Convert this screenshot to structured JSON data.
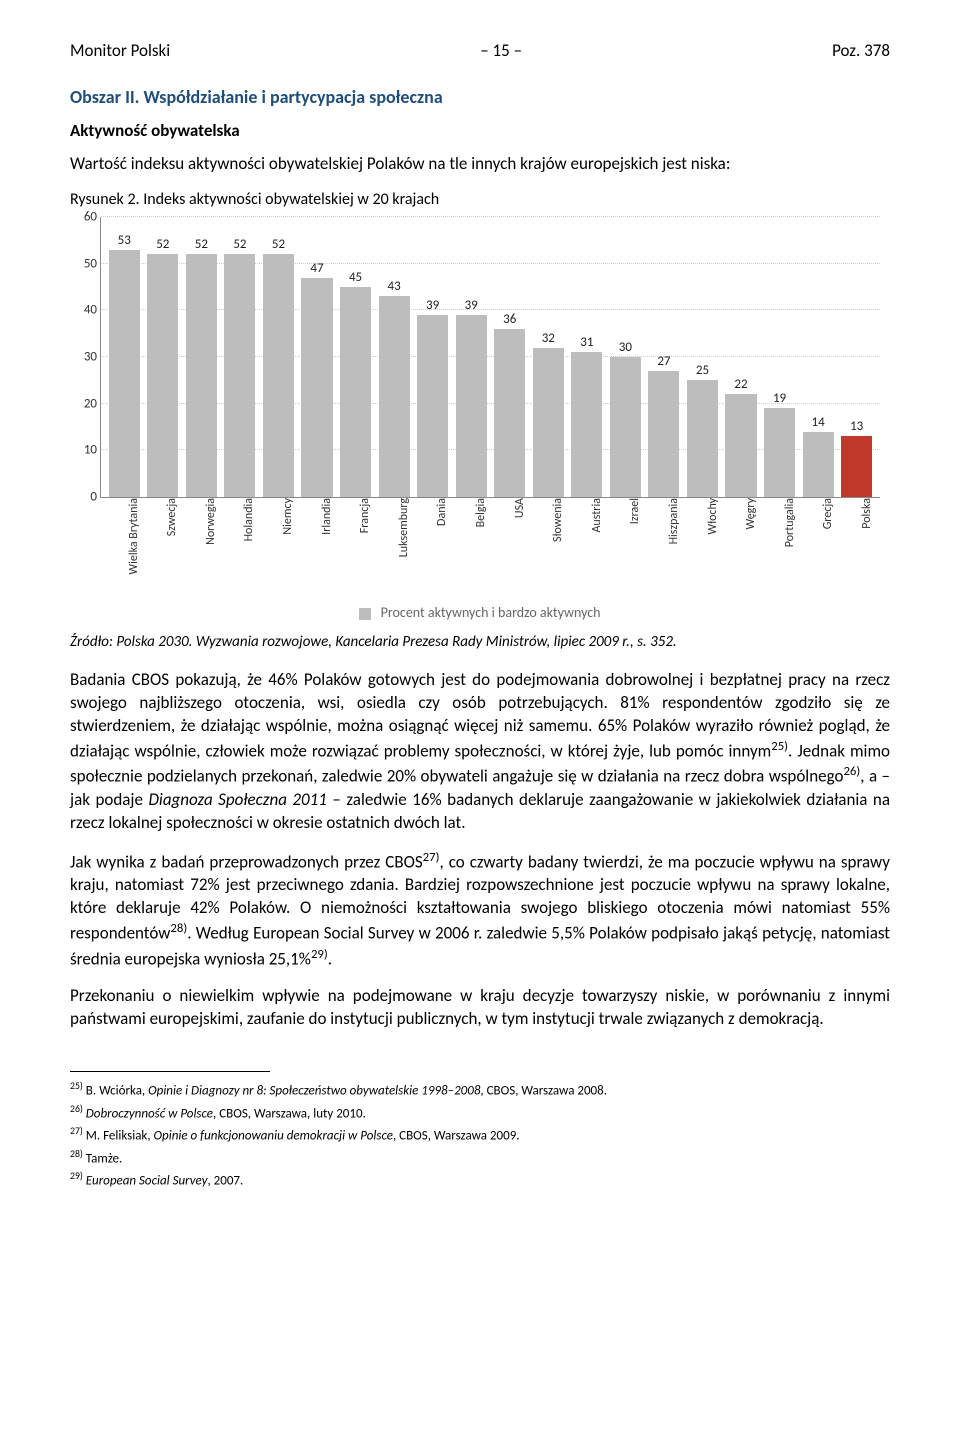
{
  "header": {
    "left": "Monitor Polski",
    "center": "– 15 –",
    "right": "Poz. 378"
  },
  "section_title": "Obszar II. Współdziałanie i partycypacja społeczna",
  "subsection": "Aktywność obywatelska",
  "intro": "Wartość indeksu aktywności obywatelskiej Polaków na tle innych krajów europejskich jest niska:",
  "figure_label": "Rysunek 2. Indeks aktywności obywatelskiej w 20 krajach",
  "chart": {
    "type": "bar",
    "ylim": [
      0,
      60
    ],
    "ytick_step": 10,
    "yticks": [
      0,
      10,
      20,
      30,
      40,
      50,
      60
    ],
    "background_color": "#ffffff",
    "grid_color": "#cccccc",
    "bar_color_default": "#bdbdbd",
    "bar_color_highlight": "#c0392b",
    "value_fontsize": 13,
    "axis_fontsize": 13,
    "bars": [
      {
        "label": "Wielka Brytania",
        "value": 53,
        "highlight": false
      },
      {
        "label": "Szwecja",
        "value": 52,
        "highlight": false
      },
      {
        "label": "Norwegia",
        "value": 52,
        "highlight": false
      },
      {
        "label": "Holandia",
        "value": 52,
        "highlight": false
      },
      {
        "label": "Niemcy",
        "value": 52,
        "highlight": false
      },
      {
        "label": "Irlandia",
        "value": 47,
        "highlight": false
      },
      {
        "label": "Francja",
        "value": 45,
        "highlight": false
      },
      {
        "label": "Luksemburg",
        "value": 43,
        "highlight": false
      },
      {
        "label": "Dania",
        "value": 39,
        "highlight": false
      },
      {
        "label": "Belgia",
        "value": 39,
        "highlight": false
      },
      {
        "label": "USA",
        "value": 36,
        "highlight": false
      },
      {
        "label": "Słowenia",
        "value": 32,
        "highlight": false
      },
      {
        "label": "Austria",
        "value": 31,
        "highlight": false
      },
      {
        "label": "Izrael",
        "value": 30,
        "highlight": false
      },
      {
        "label": "Hiszpania",
        "value": 27,
        "highlight": false
      },
      {
        "label": "Włochy",
        "value": 25,
        "highlight": false
      },
      {
        "label": "Węgry",
        "value": 22,
        "highlight": false
      },
      {
        "label": "Portugalia",
        "value": 19,
        "highlight": false
      },
      {
        "label": "Grecja",
        "value": 14,
        "highlight": false
      },
      {
        "label": "Polska",
        "value": 13,
        "highlight": true
      }
    ],
    "legend_text": "Procent aktywnych i bardzo aktywnych"
  },
  "source": "Źródło: Polska 2030. Wyzwania rozwojowe, Kancelaria Prezesa Rady Ministrów, lipiec 2009 r., s. 352.",
  "para1": "Badania CBOS pokazują, że 46% Polaków gotowych jest do podejmowania dobrowolnej i bezpłatnej pracy na rzecz swojego najbliższego otoczenia, wsi, osiedla czy osób potrzebujących. 81% respondentów zgodziło się ze stwierdzeniem, że działając wspólnie, można osiągnąć więcej niż samemu. 65% Polaków wyraziło również pogląd, że działając wspólnie, człowiek może rozwiązać problemy społeczności, w której żyje, lub pomóc innym25). Jednak mimo społecznie podzielanych przekonań, zaledwie 20% obywateli angażuje się w działania na rzecz dobra wspólnego26), a – jak podaje Diagnoza Społeczna 2011 – zaledwie 16% badanych deklaruje zaangażowanie w jakiekolwiek działania na rzecz lokalnej społeczności w okresie ostatnich dwóch lat.",
  "para2": "Jak wynika z badań przeprowadzonych przez CBOS27), co czwarty badany twierdzi, że ma poczucie wpływu na sprawy kraju, natomiast 72% jest przeciwnego zdania. Bardziej rozpowszechnione jest poczucie wpływu na sprawy lokalne, które deklaruje 42% Polaków. O niemożności kształtowania swojego bliskiego otoczenia mówi natomiast 55% respondentów28). Według European Social Survey w 2006 r. zaledwie 5,5% Polaków podpisało jakąś petycję, natomiast średnia europejska wyniosła 25,1%29).",
  "para3": "Przekonaniu o niewielkim wpływie na podejmowane w kraju decyzje towarzyszy niskie, w porównaniu z innymi państwami europejskimi, zaufanie do instytucji publicznych, w tym instytucji trwale związanych z demokracją.",
  "footnotes": [
    {
      "n": "25)",
      "text": "B. Wciórka, Opinie i Diagnozy nr 8: Społeczeństwo obywatelskie 1998–2008, CBOS, Warszawa 2008."
    },
    {
      "n": "26)",
      "text": "Dobroczynność w Polsce, CBOS, Warszawa, luty 2010."
    },
    {
      "n": "27)",
      "text": "M. Feliksiak, Opinie o funkcjonowaniu demokracji w Polsce, CBOS, Warszawa 2009."
    },
    {
      "n": "28)",
      "text": "Tamże."
    },
    {
      "n": "29)",
      "text": "European Social Survey, 2007."
    }
  ]
}
